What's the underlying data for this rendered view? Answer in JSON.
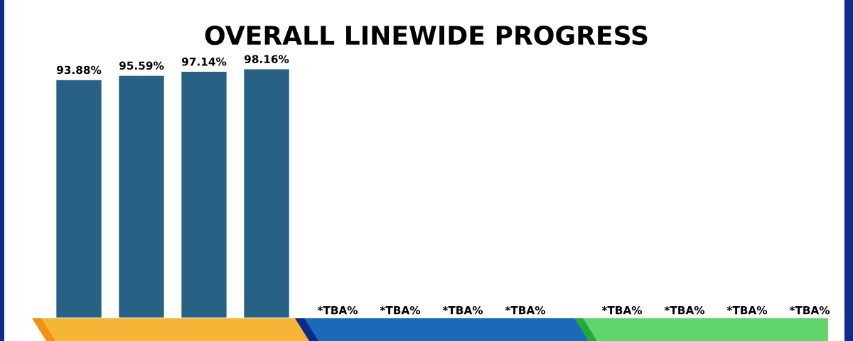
{
  "chart_data": {
    "type": "bar",
    "title": "OVERALL LINEWIDE PROGRESS",
    "categories": [
      null,
      null,
      null,
      null
    ],
    "values": [
      93.88,
      95.59,
      97.14,
      98.16
    ],
    "value_labels": [
      "93.88%",
      "95.59%",
      "97.14%",
      "98.16%"
    ],
    "annotations": [
      "*TBA%",
      "*TBA%",
      "*TBA%",
      "*TBA%",
      "*TBA%",
      "*TBA%",
      "*TBA%",
      "*TBA%"
    ],
    "color": "#276184",
    "tick_labels": false,
    "grid": false,
    "legend": false
  }
}
